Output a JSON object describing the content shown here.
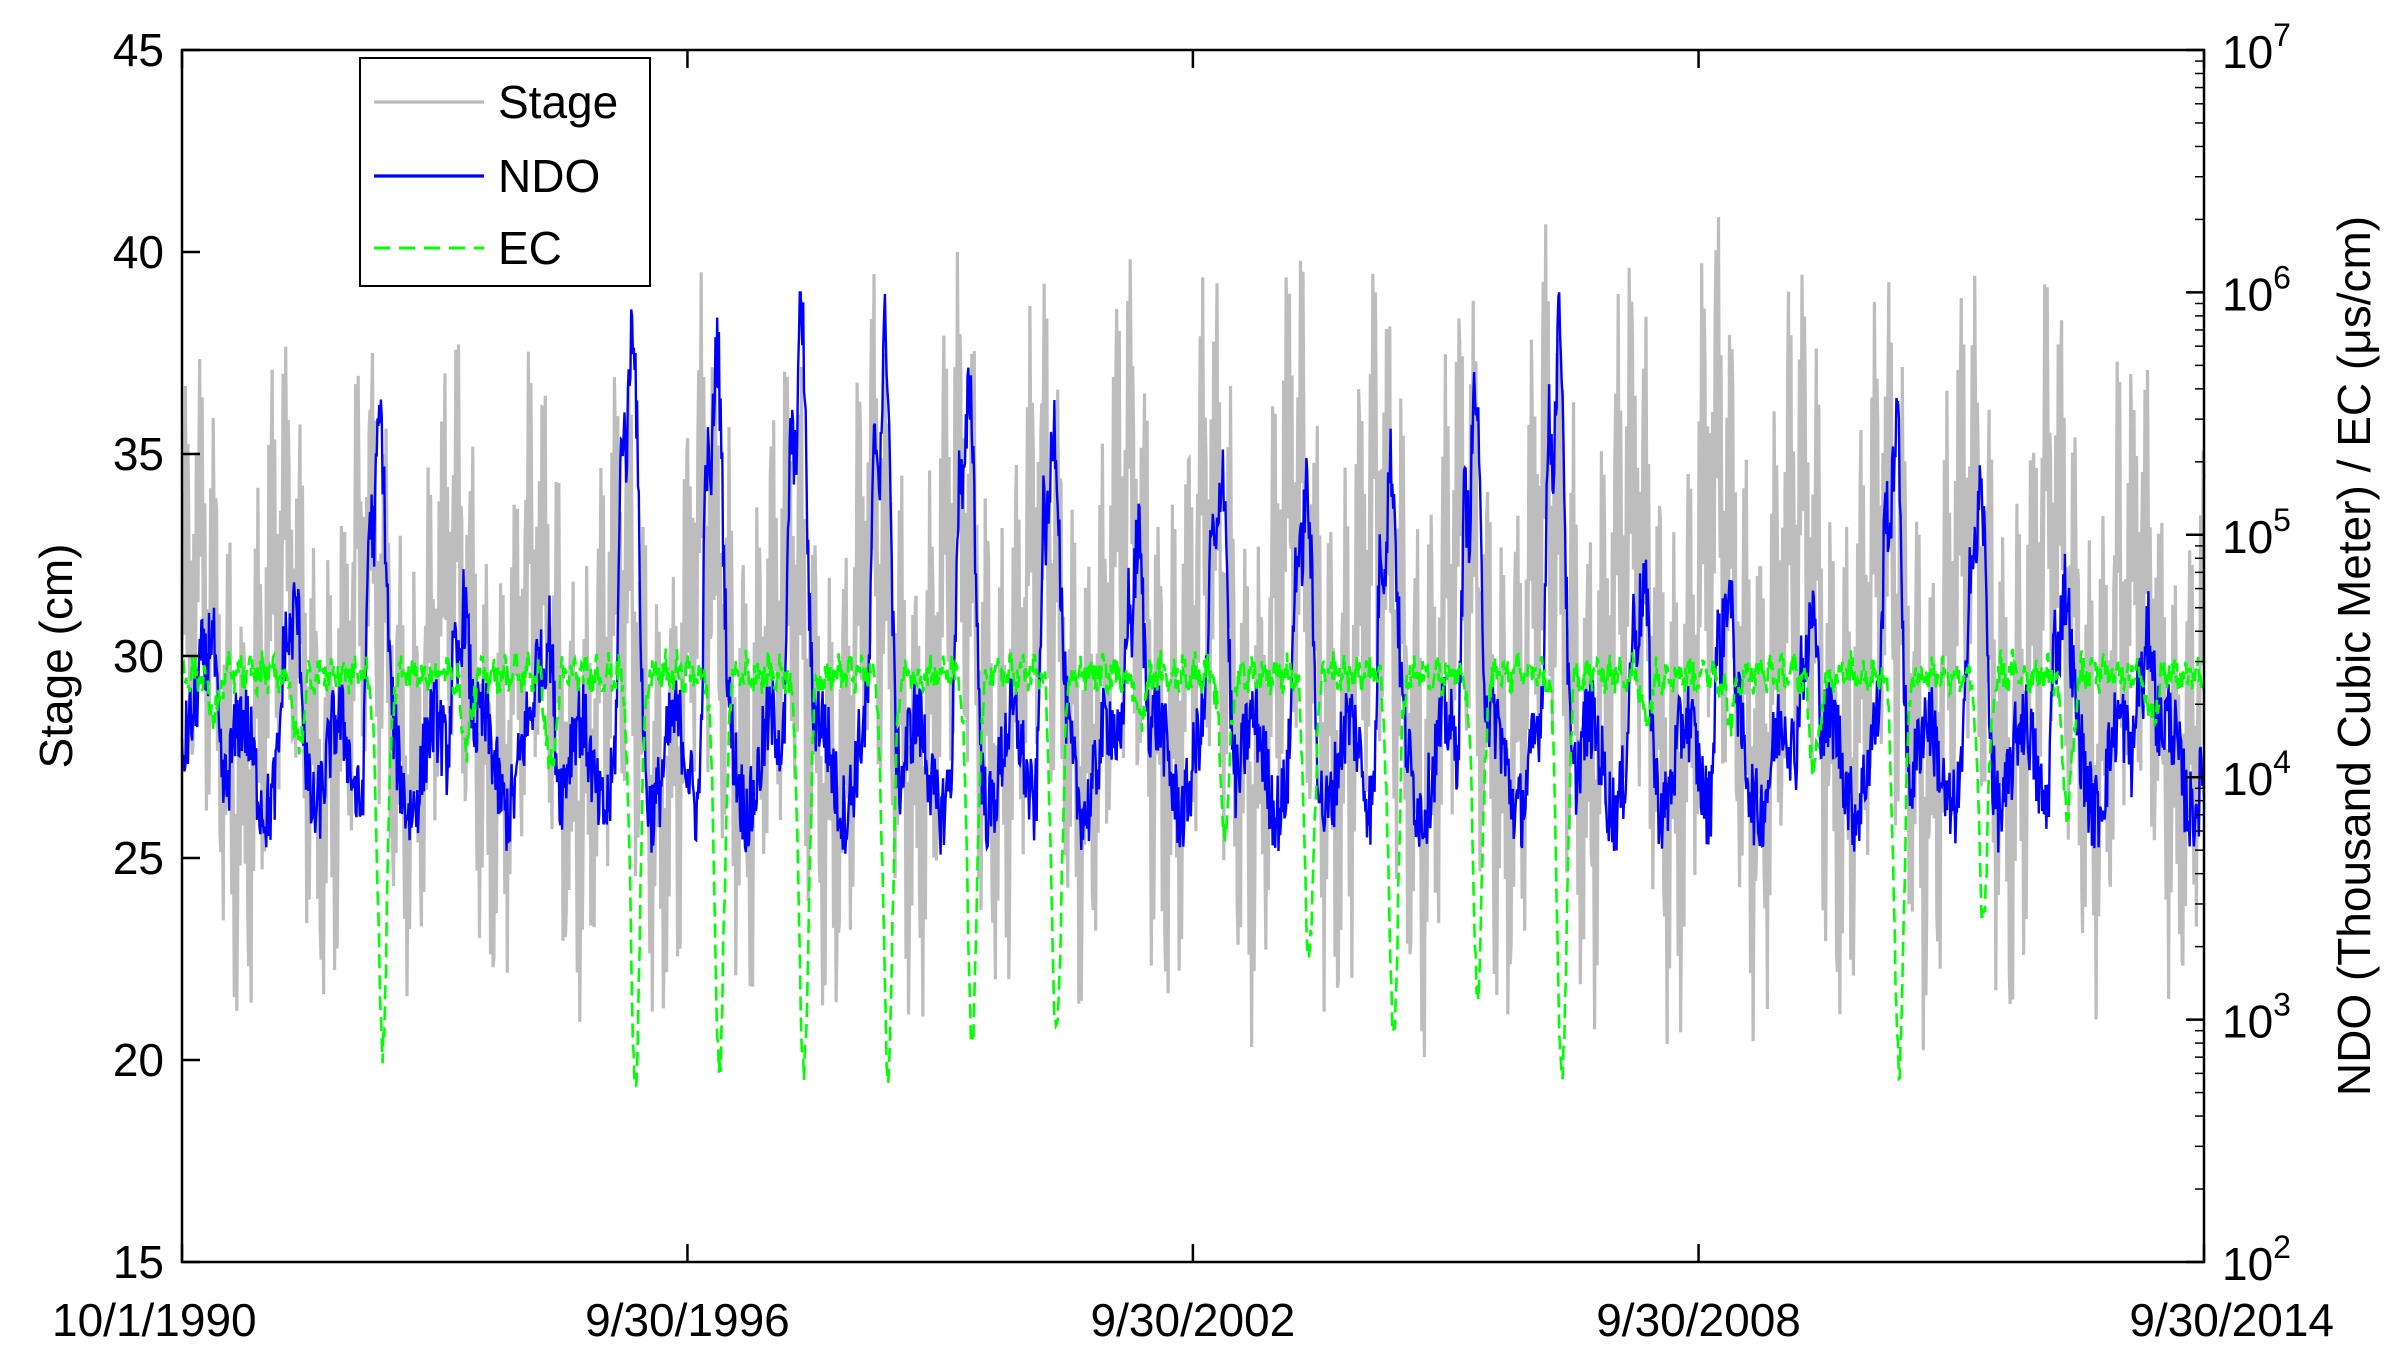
{
  "chart_data": {
    "type": "line",
    "title": "",
    "xlabel": "",
    "ylabel": "Stage (cm)",
    "ylabel_right": "NDO (Thousand Cubic Meter) / EC (μs/cm)",
    "xlim": [
      "10/1/1990",
      "9/30/2014"
    ],
    "ylim": [
      15,
      45
    ],
    "ylim_right": [
      100,
      10000000
    ],
    "y_right_scale": "log",
    "grid": false,
    "legend": "top-left",
    "x_ticks": [
      "10/1/1990",
      "9/30/1996",
      "9/30/2002",
      "9/30/2008",
      "9/30/2014"
    ],
    "y_ticks": [
      "15",
      "20",
      "25",
      "30",
      "35",
      "40",
      "45"
    ],
    "y_right_ticks": [
      {
        "base": "10",
        "exp": "2"
      },
      {
        "base": "10",
        "exp": "3"
      },
      {
        "base": "10",
        "exp": "4"
      },
      {
        "base": "10",
        "exp": "5"
      },
      {
        "base": "10",
        "exp": "6"
      },
      {
        "base": "10",
        "exp": "7"
      }
    ],
    "series": [
      {
        "name": "Stage",
        "axis": "left",
        "color": "#bdbdbd",
        "style": "solid",
        "summary": "oscillates roughly between 20 and 41 cm with an annual cycle",
        "annual_peaks": [
          38.0,
          38.5,
          38.0,
          38.2,
          38.0,
          37.8,
          39.5,
          38.0,
          39.5,
          40.0,
          39.5,
          40.5,
          40.0,
          41.0,
          40.5,
          40.0,
          41.0,
          40.5,
          41.5,
          40.5,
          40.0,
          40.0,
          40.0,
          38.0
        ],
        "annual_troughs": [
          20.5,
          20.8,
          21.5,
          21.0,
          20.5,
          20.2,
          21.0,
          20.5,
          20.5,
          20.8,
          21.0,
          20.5,
          20.2,
          20.2,
          20.0,
          20.2,
          20.4,
          20.0,
          20.2,
          20.0,
          20.2,
          20.5,
          21.0,
          21.0
        ]
      },
      {
        "name": "NDO",
        "axis": "right",
        "color": "#0000ff",
        "style": "solid",
        "summary": "daily outflow, mostly 5,000-30,000 with winter peaks up to about 1,000,000",
        "annual_peaks": [
          40000,
          50000,
          300000,
          50000,
          40000,
          800000,
          600000,
          900000,
          700000,
          400000,
          300000,
          100000,
          200000,
          150000,
          200000,
          400000,
          800000,
          60000,
          60000,
          50000,
          300000,
          150000,
          60000,
          40000
        ],
        "base_range": [
          5000,
          30000
        ]
      },
      {
        "name": "EC",
        "axis": "right",
        "color": "#00ff00",
        "style": "dashed",
        "summary": "typically about 20,000-35,000 with sharp drops during high-flow periods",
        "annual_minima": [
          20000,
          15000,
          900,
          15000,
          12000,
          650,
          700,
          650,
          700,
          900,
          850,
          20000,
          7000,
          2000,
          1000,
          1500,
          600,
          20000,
          20000,
          12000,
          700,
          3000,
          8000,
          20000
        ],
        "base_level": 30000
      }
    ]
  }
}
